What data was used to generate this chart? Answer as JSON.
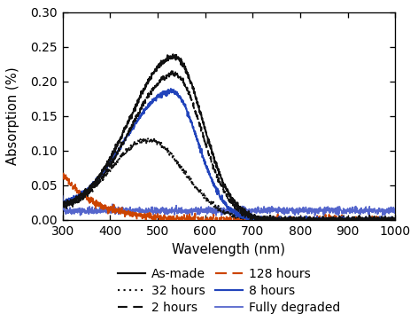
{
  "title": "",
  "xlabel": "Wavelength (nm)",
  "ylabel": "Absorption (%)",
  "xlim": [
    300,
    1000
  ],
  "ylim": [
    0,
    0.3
  ],
  "yticks": [
    0,
    0.05,
    0.1,
    0.15,
    0.2,
    0.25,
    0.3
  ],
  "xticks": [
    300,
    400,
    500,
    600,
    700,
    800,
    900,
    1000
  ],
  "background_color": "#ffffff",
  "noise_seed": 42,
  "series": {
    "as_made": {
      "label": "As-made",
      "color": "#111111",
      "linestyle": "solid",
      "linewidth": 1.2,
      "peak_wl": 535,
      "peak_val": 0.235,
      "sigma_l": 95,
      "sigma_r": 60,
      "base": 0.0,
      "uv_amp": 0.012,
      "uv_tau": 70,
      "noise": 0.0018
    },
    "2hours": {
      "label": "2 hours",
      "color": "#111111",
      "linestyle": "dashed",
      "linewidth": 1.2,
      "peak_wl": 535,
      "peak_val": 0.21,
      "sigma_l": 95,
      "sigma_r": 58,
      "base": 0.0,
      "uv_amp": 0.01,
      "uv_tau": 70,
      "noise": 0.0018
    },
    "8hours": {
      "label": "8 hours",
      "color": "#2244bb",
      "linestyle": "solid",
      "linewidth": 1.2,
      "peak_wl": 530,
      "peak_val": 0.185,
      "sigma_l": 100,
      "sigma_r": 55,
      "base": 0.0,
      "uv_amp": 0.012,
      "uv_tau": 75,
      "noise": 0.0018
    },
    "32hours": {
      "label": "32 hours",
      "color": "#111111",
      "linestyle": "dotted",
      "linewidth": 1.2,
      "peak_wl": 480,
      "peak_val": 0.115,
      "sigma_l": 80,
      "sigma_r": 75,
      "base": 0.0,
      "uv_amp": 0.015,
      "uv_tau": 70,
      "noise": 0.0018
    },
    "128hours": {
      "label": "128 hours",
      "color": "#cc4400",
      "linestyle": "dashed",
      "linewidth": 1.2,
      "peak_wl": 300,
      "peak_val": 0.065,
      "sigma_l": 1,
      "sigma_r": 70,
      "base": 0.0,
      "uv_amp": 0.0,
      "uv_tau": 1,
      "noise": 0.0025
    },
    "fully_degraded": {
      "label": "Fully degraded",
      "color": "#5566cc",
      "linestyle": "solid",
      "linewidth": 1.0,
      "peak_wl": 300,
      "peak_val": 0.02,
      "sigma_l": 1,
      "sigma_r": 1,
      "base": 0.013,
      "uv_amp": 0.0,
      "uv_tau": 1,
      "noise": 0.0025
    }
  },
  "legend": {
    "order_left": [
      "as_made",
      "2hours",
      "8hours"
    ],
    "order_right": [
      "32hours",
      "128hours",
      "fully_degraded"
    ],
    "fontsize": 8.5,
    "handlelength": 2.2,
    "handleheight": 1.0
  }
}
